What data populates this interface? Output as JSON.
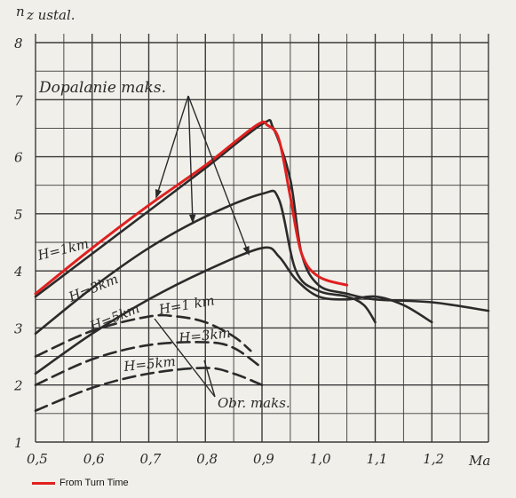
{
  "chart_data": {
    "type": "line",
    "ylabel": "n",
    "ylabel_sub": "z ustal.",
    "xlabel": "Ma",
    "xlim": [
      0.5,
      1.3
    ],
    "ylim": [
      1,
      8
    ],
    "x_ticks": [
      "0,5",
      "0,6",
      "0,7",
      "0,8",
      "0,9",
      "1,0",
      "1,1",
      "1,2"
    ],
    "y_ticks": [
      "1",
      "2",
      "3",
      "4",
      "5",
      "6",
      "7",
      "8"
    ],
    "grid": true,
    "annotations": {
      "afterburner": "Dopalanie maks.",
      "max_power": "Obr. maks.",
      "h1_solid": "H=1km",
      "h3_solid": "H=3km",
      "h5_solid": "H=5km",
      "h1_dashed": "H=1 km",
      "h3_dashed": "H=3km",
      "h5_dashed": "H=5km"
    },
    "series": [
      {
        "style": "solid",
        "color": "#2b2b2b",
        "x": [
          0.5,
          0.6,
          0.7,
          0.8,
          0.9,
          0.92,
          0.95,
          0.97,
          1.0,
          1.05,
          1.1,
          1.2,
          1.3
        ],
        "y": [
          3.55,
          4.3,
          5.05,
          5.8,
          6.57,
          6.5,
          5.6,
          4.3,
          3.75,
          3.6,
          3.5,
          3.45,
          3.3
        ]
      },
      {
        "style": "solid",
        "color": "#2b2b2b",
        "x": [
          0.5,
          0.6,
          0.7,
          0.8,
          0.9,
          0.93,
          0.96,
          1.0,
          1.05,
          1.08,
          1.1
        ],
        "y": [
          2.9,
          3.7,
          4.4,
          4.95,
          5.35,
          5.25,
          4.0,
          3.65,
          3.55,
          3.4,
          3.1
        ]
      },
      {
        "style": "solid",
        "color": "#2b2b2b",
        "x": [
          0.5,
          0.6,
          0.7,
          0.8,
          0.9,
          0.93,
          0.96,
          1.0,
          1.05,
          1.1,
          1.15,
          1.2
        ],
        "y": [
          2.2,
          2.9,
          3.5,
          4.0,
          4.4,
          4.25,
          3.85,
          3.55,
          3.5,
          3.55,
          3.4,
          3.1
        ]
      },
      {
        "style": "dashed",
        "color": "#2b2b2b",
        "x": [
          0.5,
          0.6,
          0.7,
          0.75,
          0.8,
          0.85,
          0.88
        ],
        "y": [
          2.5,
          2.95,
          3.2,
          3.2,
          3.1,
          2.85,
          2.6
        ]
      },
      {
        "style": "dashed",
        "color": "#2b2b2b",
        "x": [
          0.5,
          0.6,
          0.7,
          0.8,
          0.85,
          0.9
        ],
        "y": [
          2.0,
          2.45,
          2.7,
          2.75,
          2.65,
          2.3
        ]
      },
      {
        "style": "dashed",
        "color": "#2b2b2b",
        "x": [
          0.5,
          0.6,
          0.7,
          0.8,
          0.85,
          0.9
        ],
        "y": [
          1.55,
          1.95,
          2.2,
          2.3,
          2.2,
          2.0
        ]
      },
      {
        "name": "From Turn Time",
        "style": "solid",
        "color": "#e02020",
        "x": [
          0.5,
          0.6,
          0.7,
          0.8,
          0.89,
          0.91,
          0.93,
          0.95,
          0.97,
          1.0,
          1.05
        ],
        "y": [
          3.6,
          4.4,
          5.15,
          5.85,
          6.55,
          6.55,
          6.3,
          5.3,
          4.3,
          3.9,
          3.75
        ]
      }
    ]
  }
}
